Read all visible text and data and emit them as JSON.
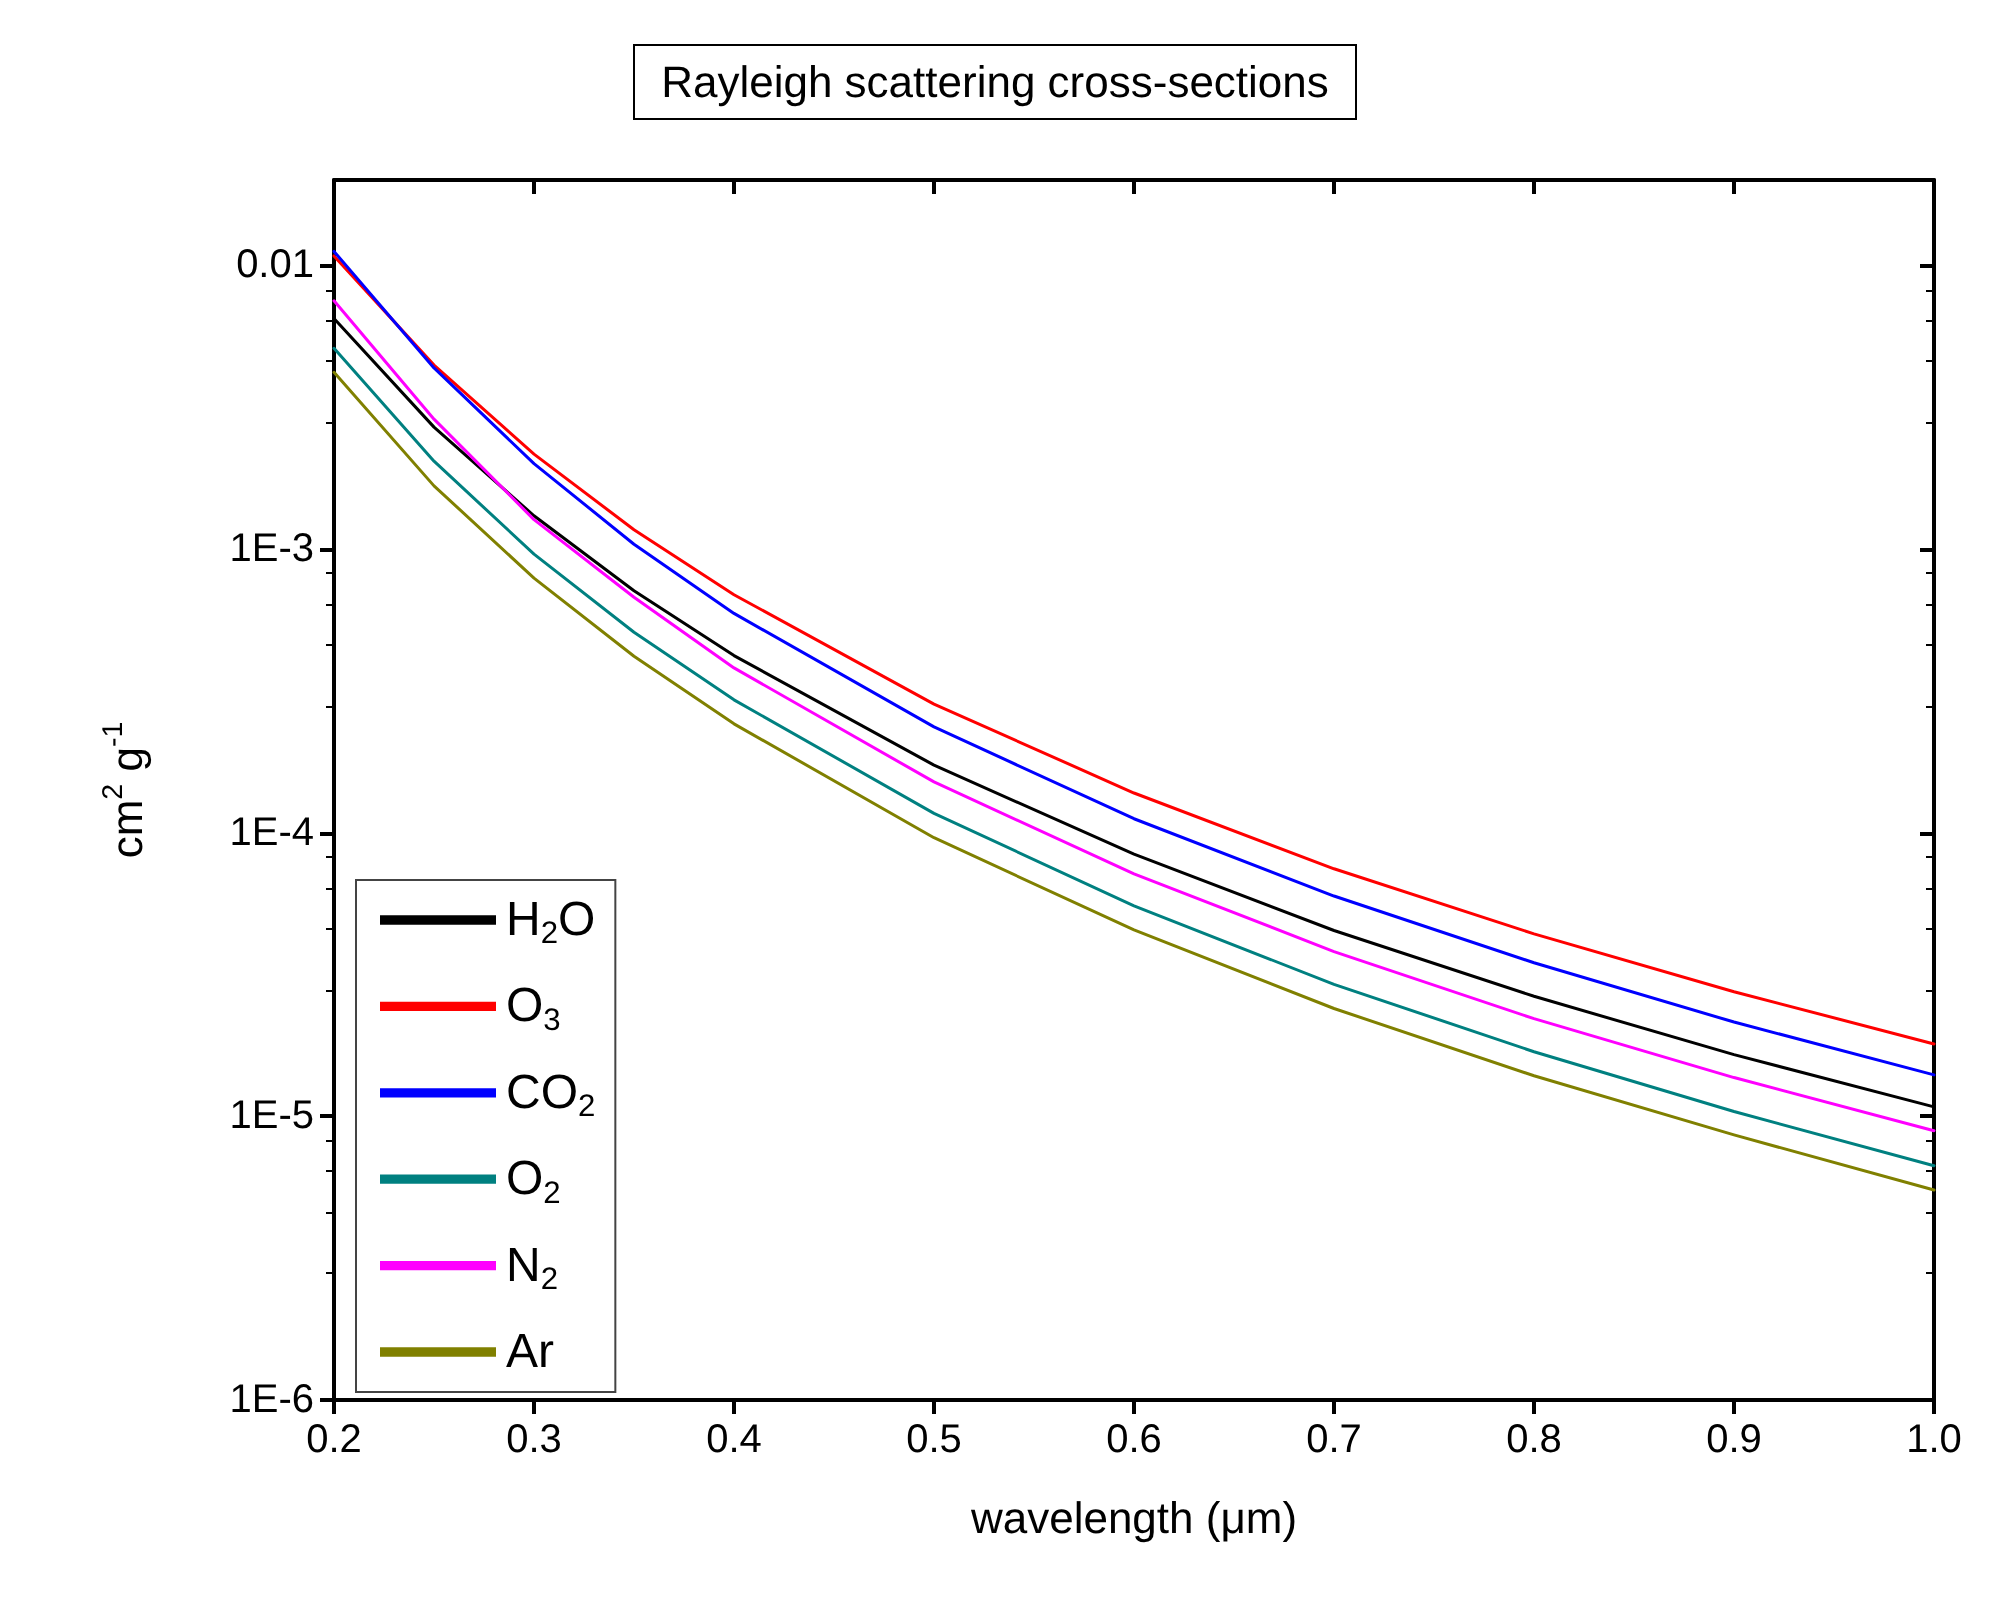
{
  "chart_data": {
    "type": "line",
    "title": "Rayleigh scattering cross-sections",
    "xlabel": "wavelength (μm)",
    "ylabel": "cm$^{2}$ g$^{-1}$",
    "x": [
      0.2,
      0.25,
      0.3,
      0.35,
      0.4,
      0.5,
      0.6,
      0.7,
      0.8,
      0.9,
      1.0
    ],
    "series": [
      {
        "name": "H$_{2}$O",
        "color": "#000000",
        "values": [
          0.0065,
          0.00269,
          0.00131,
          0.000713,
          0.000421,
          0.000173,
          8.4e-05,
          4.52e-05,
          2.65e-05,
          1.65e-05,
          1.08e-05
        ]
      },
      {
        "name": "O$_{3}$",
        "color": "#ff0000",
        "values": [
          0.0108,
          0.00445,
          0.00216,
          0.00117,
          0.00069,
          0.000284,
          0.000138,
          7.46e-05,
          4.4e-05,
          2.75e-05,
          1.8e-05
        ]
      },
      {
        "name": "CO$_{2}$",
        "color": "#0000ff",
        "values": [
          0.0112,
          0.00435,
          0.002,
          0.00104,
          0.000593,
          0.000236,
          0.000112,
          5.98e-05,
          3.48e-05,
          2.15e-05,
          1.4e-05
        ]
      },
      {
        "name": "O$_{2}$",
        "color": "#008080",
        "values": [
          0.0051,
          0.00204,
          0.00096,
          0.000509,
          0.000294,
          0.000117,
          5.52e-05,
          2.92e-05,
          1.69e-05,
          1.04e-05,
          6.7e-06
        ]
      },
      {
        "name": "N$_{2}$",
        "color": "#ff00ff",
        "values": [
          0.0075,
          0.00287,
          0.00127,
          0.000676,
          0.000381,
          0.000151,
          7.16e-05,
          3.81e-05,
          2.21e-05,
          1.37e-05,
          8.9e-06
        ]
      },
      {
        "name": "Ar",
        "color": "#808000",
        "values": [
          0.0042,
          0.00167,
          0.00079,
          0.000419,
          0.000242,
          9.6e-05,
          4.54e-05,
          2.4e-05,
          1.39e-05,
          8.6e-06,
          5.5e-06
        ]
      }
    ],
    "xlim": [
      0.2,
      1.0
    ],
    "xticks": [
      {
        "value": 0.2,
        "label": "0.2"
      },
      {
        "value": 0.3,
        "label": "0.3"
      },
      {
        "value": 0.4,
        "label": "0.4"
      },
      {
        "value": 0.5,
        "label": "0.5"
      },
      {
        "value": 0.6,
        "label": "0.6"
      },
      {
        "value": 0.7,
        "label": "0.7"
      },
      {
        "value": 0.8,
        "label": "0.8"
      },
      {
        "value": 0.9,
        "label": "0.9"
      },
      {
        "value": 1.0,
        "label": "1.0"
      }
    ],
    "ylim": [
      1e-06,
      0.02
    ],
    "yticks": [
      {
        "value": 1e-06,
        "label": "1E-6"
      },
      {
        "value": 1e-05,
        "label": "1E-5"
      },
      {
        "value": 0.0001,
        "label": "1E-4"
      },
      {
        "value": 0.001,
        "label": "1E-3"
      },
      0.01
    ],
    "log": "y",
    "grid": false,
    "legend": "bottom left",
    "marker": "none",
    "line_style": "solid"
  }
}
